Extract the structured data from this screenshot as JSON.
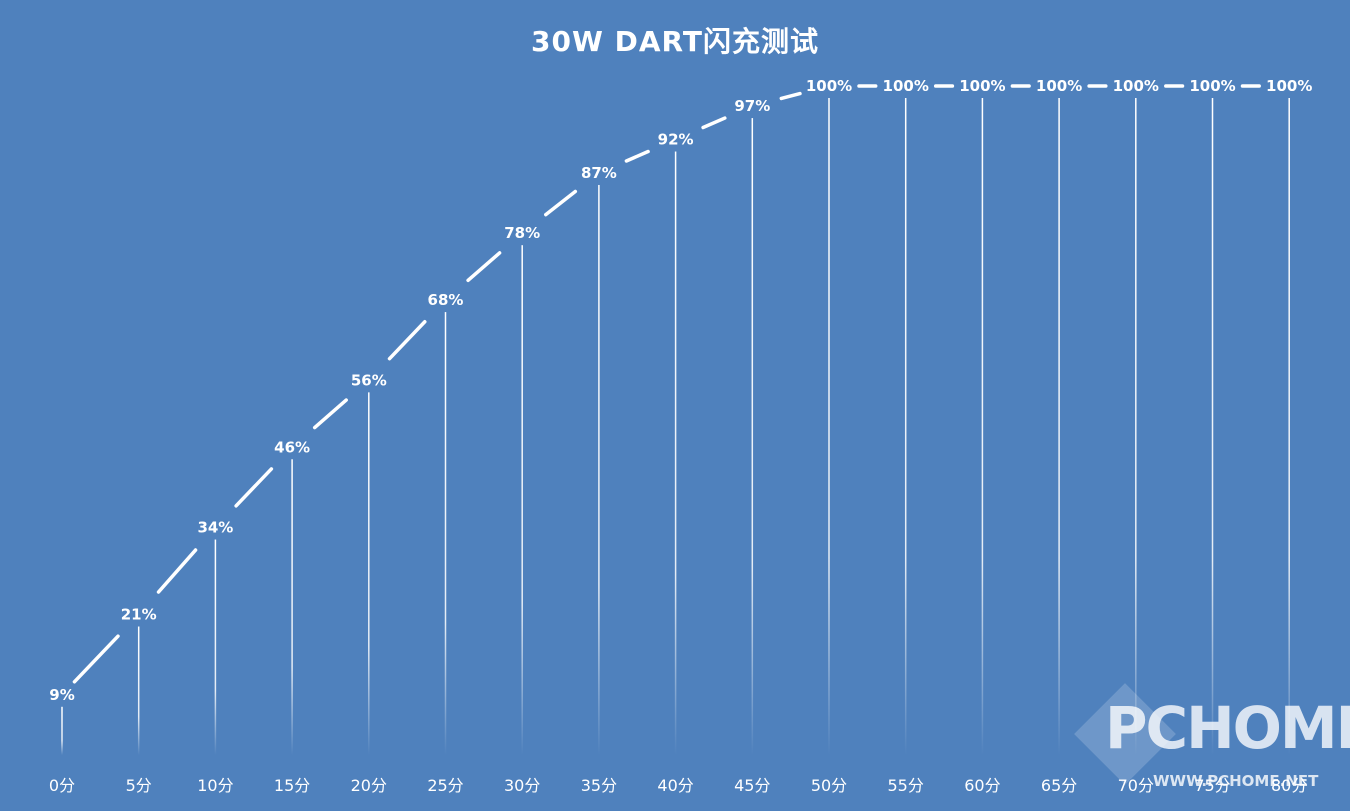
{
  "chart_data": {
    "type": "line",
    "title": "30W DART闪充测试",
    "categories": [
      "0分",
      "5分",
      "10分",
      "15分",
      "20分",
      "25分",
      "30分",
      "35分",
      "40分",
      "45分",
      "50分",
      "55分",
      "60分",
      "65分",
      "70分",
      "75分",
      "80分"
    ],
    "values": [
      9,
      21,
      34,
      46,
      56,
      68,
      78,
      87,
      92,
      97,
      100,
      100,
      100,
      100,
      100,
      100,
      100
    ],
    "data_labels": [
      "9%",
      "21%",
      "34%",
      "46%",
      "56%",
      "68%",
      "78%",
      "87%",
      "92%",
      "97%",
      "100%",
      "100%",
      "100%",
      "100%",
      "100%",
      "100%",
      "100%"
    ],
    "ylim": [
      0,
      100
    ],
    "grid": false,
    "legend": "none",
    "drop_lines": true
  },
  "colors": {
    "background": "#4f81bd",
    "line": "#ffffff",
    "text": "#ffffff"
  },
  "watermark": {
    "logo_text": "PCHOME",
    "url_text": "WWW.PCHOME.NET"
  }
}
